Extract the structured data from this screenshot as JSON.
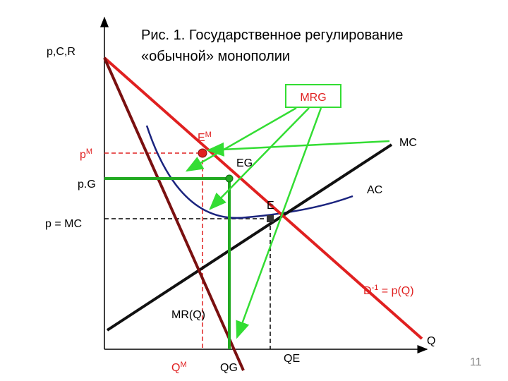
{
  "title": {
    "line1": "Рис. 1. Государственное регулирование",
    "line2": "«обычной» монополии"
  },
  "axes": {
    "y_label": "p,C,R",
    "x_label": "Q"
  },
  "price_labels": {
    "pm": {
      "base": "p",
      "sup": "M"
    },
    "pg": "p.G",
    "pmc": "p = MC"
  },
  "quantity_labels": {
    "qm": {
      "base": "Q",
      "sup": "M"
    },
    "qg": "QG",
    "qe": "QE"
  },
  "points": {
    "em": {
      "base": "E",
      "sup": "M"
    },
    "eg": "EG",
    "e": "E"
  },
  "curves": {
    "mc": "MC",
    "ac": "AC",
    "demand": {
      "base": "D",
      "sup": "-1",
      "rest": " = p(Q)"
    },
    "mr": "MR(Q)"
  },
  "box": {
    "label": "MRG"
  },
  "page_number": "11"
}
